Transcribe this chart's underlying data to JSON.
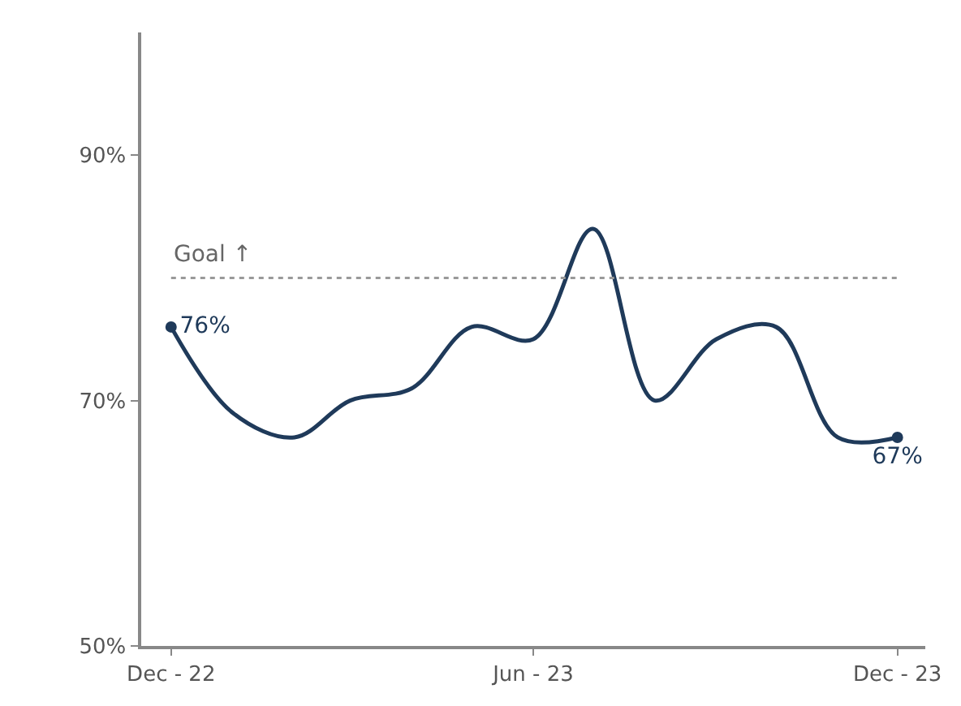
{
  "chart_data": {
    "type": "line",
    "x": [
      "2022-12",
      "2023-01",
      "2023-02",
      "2023-03",
      "2023-04",
      "2023-05",
      "2023-06",
      "2023-07",
      "2023-08",
      "2023-09",
      "2023-10",
      "2023-11",
      "2023-12"
    ],
    "series": [
      {
        "color": "#1f3a5a",
        "values": [
          76,
          69,
          67,
          70,
          71,
          76,
          75,
          84,
          70,
          75,
          76,
          67,
          67
        ],
        "value_labels": [
          "76%",
          null,
          null,
          null,
          null,
          null,
          null,
          null,
          null,
          null,
          null,
          null,
          "67%"
        ]
      }
    ],
    "xlim": [
      "2022-11-16",
      "2023-12-15"
    ],
    "xticks": [
      {
        "value": "2022-12",
        "label": "Dec - 22"
      },
      {
        "value": "2023-06",
        "label": "Jun - 23"
      },
      {
        "value": "2023-12",
        "label": "Dec - 23"
      }
    ],
    "ylim": [
      50,
      100
    ],
    "yticks": [
      {
        "value": 50,
        "label": "50%"
      },
      {
        "value": 70,
        "label": "70%"
      },
      {
        "value": 90,
        "label": "90%"
      }
    ],
    "line_style": "solid",
    "ref_lines": [
      {
        "axis": "y",
        "value": 80,
        "label": "Goal ↑",
        "color": "#999999",
        "line_style": "dotted"
      }
    ]
  }
}
